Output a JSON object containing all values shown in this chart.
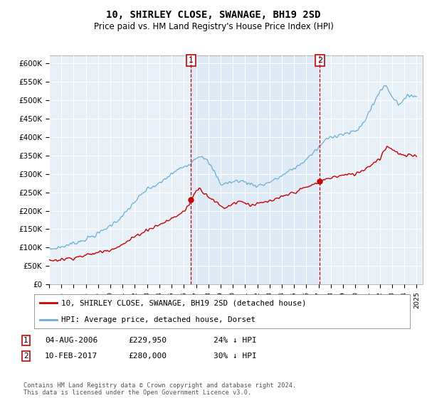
{
  "title": "10, SHIRLEY CLOSE, SWANAGE, BH19 2SD",
  "subtitle": "Price paid vs. HM Land Registry's House Price Index (HPI)",
  "ylabel_ticks": [
    "£0",
    "£50K",
    "£100K",
    "£150K",
    "£200K",
    "£250K",
    "£300K",
    "£350K",
    "£400K",
    "£450K",
    "£500K",
    "£550K",
    "£600K"
  ],
  "ylim": [
    0,
    620000
  ],
  "xlim_start": 1995.0,
  "xlim_end": 2025.5,
  "hpi_color": "#6baed6",
  "hpi_fill_color": "#cce0f0",
  "price_color": "#cc0000",
  "marker_color": "#cc0000",
  "vline_color": "#cc0000",
  "background_color": "#e8f0f8",
  "grid_color": "#ffffff",
  "sale1_x": 2006.585,
  "sale1_y": 229950,
  "sale2_x": 2017.1,
  "sale2_y": 280000,
  "sale1_label": "04-AUG-2006",
  "sale1_price": "£229,950",
  "sale1_hpi": "24% ↓ HPI",
  "sale2_label": "10-FEB-2017",
  "sale2_price": "£280,000",
  "sale2_hpi": "30% ↓ HPI",
  "legend_line1": "10, SHIRLEY CLOSE, SWANAGE, BH19 2SD (detached house)",
  "legend_line2": "HPI: Average price, detached house, Dorset",
  "footnote": "Contains HM Land Registry data © Crown copyright and database right 2024.\nThis data is licensed under the Open Government Licence v3.0."
}
